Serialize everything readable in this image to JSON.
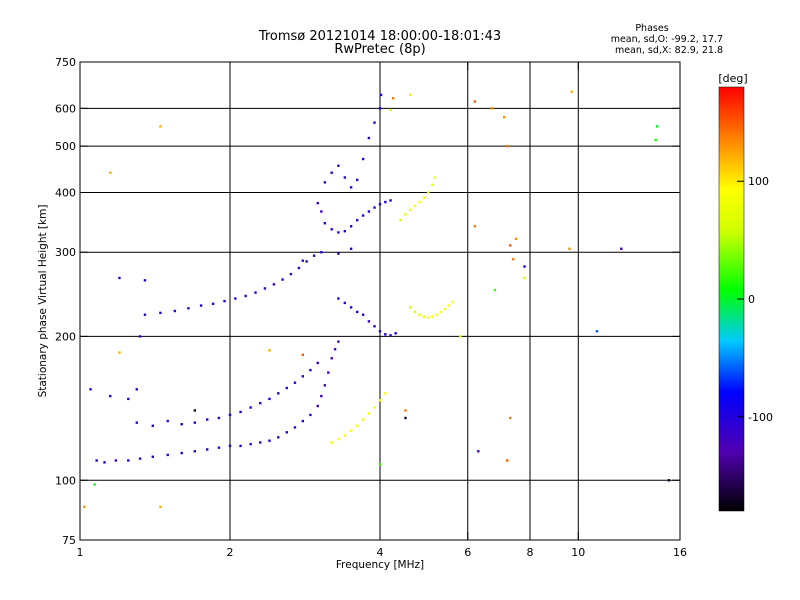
{
  "chart_data": {
    "type": "scatter",
    "title": "Tromsø 20121014 18:00:00-18:01:43",
    "subtitle": "RwPretec (8p)",
    "xlabel": "Frequency [MHz]",
    "ylabel": "Stationary phase Virtual Height [km]",
    "x_scale": "log",
    "y_scale": "log",
    "xlim": [
      1,
      16
    ],
    "ylim": [
      75,
      750
    ],
    "x_ticks": [
      1,
      2,
      4,
      6,
      8,
      10,
      16
    ],
    "y_ticks": [
      75,
      100,
      200,
      300,
      400,
      500,
      600,
      750
    ],
    "x_grid": [
      2,
      4,
      6,
      8,
      10
    ],
    "y_grid": [
      100,
      200,
      300,
      400,
      500,
      600
    ],
    "grid": true,
    "stats": {
      "heading": "Phases",
      "line_o": "mean, sd,O: -99.2, 17.7",
      "line_x": "mean, sd,X:  82.9, 21.8"
    },
    "colorbar": {
      "label": "[deg]",
      "range": [
        -180,
        180
      ],
      "ticks": [
        100,
        0,
        -100
      ]
    },
    "points_description": "Ionogram echoes; each point [frequency MHz, virtual height km, phase deg]",
    "series": [
      {
        "traces": [
          [
            1.08,
            110,
            -105
          ],
          [
            1.12,
            109,
            -108
          ],
          [
            1.18,
            110,
            -112
          ],
          [
            1.25,
            110,
            -104
          ],
          [
            1.32,
            111,
            -110
          ],
          [
            1.4,
            112,
            -106
          ],
          [
            1.5,
            113,
            -112
          ],
          [
            1.6,
            114,
            -108
          ],
          [
            1.7,
            115,
            -110
          ],
          [
            1.8,
            116,
            -105
          ],
          [
            1.9,
            117,
            -112
          ],
          [
            2.0,
            118,
            -108
          ],
          [
            2.1,
            118,
            -106
          ],
          [
            2.2,
            119,
            -102
          ],
          [
            2.3,
            120,
            -110
          ],
          [
            2.4,
            121,
            -98
          ],
          [
            2.5,
            123,
            -104
          ],
          [
            2.6,
            126,
            -100
          ],
          [
            2.7,
            129,
            -106
          ],
          [
            2.8,
            133,
            -102
          ],
          [
            2.9,
            137,
            -108
          ],
          [
            3.0,
            143,
            -112
          ],
          [
            3.05,
            150,
            -114
          ],
          [
            3.1,
            158,
            -116
          ],
          [
            3.15,
            168,
            -118
          ],
          [
            3.2,
            180,
            -120
          ],
          [
            3.25,
            188,
            -122
          ],
          [
            3.3,
            195,
            -124
          ],
          [
            1.3,
            132,
            -110
          ],
          [
            1.4,
            130,
            -106
          ],
          [
            1.5,
            133,
            -112
          ],
          [
            1.6,
            131,
            -104
          ],
          [
            1.7,
            132,
            -108
          ],
          [
            1.8,
            134,
            -100
          ],
          [
            1.9,
            135,
            -106
          ],
          [
            2.0,
            137,
            -102
          ],
          [
            2.1,
            139,
            -108
          ],
          [
            2.2,
            142,
            -104
          ],
          [
            2.3,
            145,
            -110
          ],
          [
            2.4,
            148,
            -96
          ],
          [
            2.5,
            152,
            -102
          ],
          [
            2.6,
            156,
            -108
          ],
          [
            2.7,
            160,
            -104
          ],
          [
            2.8,
            165,
            -110
          ],
          [
            2.9,
            170,
            -106
          ],
          [
            3.0,
            176,
            -112
          ],
          [
            1.35,
            222,
            -108
          ],
          [
            1.45,
            224,
            -112
          ],
          [
            1.55,
            226,
            -106
          ],
          [
            1.65,
            229,
            -110
          ],
          [
            1.75,
            232,
            -104
          ],
          [
            1.85,
            234,
            -108
          ],
          [
            1.95,
            237,
            -112
          ],
          [
            2.05,
            240,
            -106
          ],
          [
            2.15,
            243,
            -110
          ],
          [
            2.25,
            247,
            -104
          ],
          [
            2.35,
            252,
            -108
          ],
          [
            2.45,
            257,
            -112
          ],
          [
            2.55,
            263,
            -106
          ],
          [
            2.65,
            270,
            -110
          ],
          [
            2.75,
            278,
            -104
          ],
          [
            2.85,
            287,
            -108
          ],
          [
            2.95,
            295,
            -112
          ],
          [
            3.05,
            300,
            -106
          ],
          [
            3.0,
            380,
            -112
          ],
          [
            3.05,
            365,
            -116
          ],
          [
            3.1,
            345,
            -108
          ],
          [
            3.2,
            335,
            -112
          ],
          [
            3.3,
            330,
            -106
          ],
          [
            3.4,
            332,
            -110
          ],
          [
            3.5,
            340,
            -104
          ],
          [
            3.6,
            350,
            -108
          ],
          [
            3.7,
            358,
            -112
          ],
          [
            3.8,
            365,
            -106
          ],
          [
            3.9,
            372,
            -110
          ],
          [
            4.0,
            378,
            -102
          ],
          [
            4.1,
            382,
            -98
          ],
          [
            4.2,
            385,
            -92
          ],
          [
            3.1,
            420,
            -114
          ],
          [
            3.2,
            440,
            -110
          ],
          [
            3.3,
            455,
            -106
          ],
          [
            3.4,
            430,
            -112
          ],
          [
            3.5,
            410,
            -108
          ],
          [
            3.6,
            425,
            -104
          ],
          [
            3.7,
            470,
            -110
          ],
          [
            3.8,
            520,
            -106
          ],
          [
            3.9,
            560,
            -102
          ],
          [
            4.0,
            600,
            -98
          ],
          [
            4.02,
            640,
            -96
          ],
          [
            3.3,
            240,
            -108
          ],
          [
            3.4,
            235,
            -112
          ],
          [
            3.5,
            230,
            -106
          ],
          [
            3.6,
            225,
            -110
          ],
          [
            3.7,
            222,
            -104
          ],
          [
            3.8,
            215,
            -108
          ],
          [
            3.9,
            210,
            -112
          ],
          [
            4.0,
            205,
            -106
          ],
          [
            4.1,
            202,
            -100
          ],
          [
            4.2,
            201,
            -96
          ],
          [
            4.3,
            203,
            -92
          ],
          [
            4.6,
            230,
            60
          ],
          [
            4.7,
            225,
            70
          ],
          [
            4.8,
            222,
            80
          ],
          [
            4.9,
            220,
            90
          ],
          [
            5.0,
            219,
            85
          ],
          [
            5.1,
            220,
            95
          ],
          [
            5.2,
            222,
            88
          ],
          [
            5.3,
            225,
            92
          ],
          [
            5.4,
            228,
            84
          ],
          [
            5.5,
            232,
            90
          ],
          [
            5.6,
            236,
            86
          ],
          [
            4.4,
            350,
            60
          ],
          [
            4.5,
            360,
            70
          ],
          [
            4.6,
            368,
            80
          ],
          [
            4.7,
            375,
            90
          ],
          [
            4.8,
            382,
            86
          ],
          [
            4.9,
            390,
            92
          ],
          [
            5.0,
            400,
            88
          ],
          [
            5.1,
            415,
            82
          ],
          [
            5.15,
            430,
            78
          ],
          [
            3.2,
            120,
            80
          ],
          [
            3.3,
            122,
            86
          ],
          [
            3.4,
            124,
            90
          ],
          [
            3.5,
            127,
            92
          ],
          [
            3.6,
            130,
            88
          ],
          [
            3.7,
            134,
            84
          ],
          [
            3.8,
            138,
            90
          ],
          [
            3.9,
            142,
            86
          ],
          [
            4.0,
            147,
            92
          ],
          [
            4.1,
            152,
            88
          ],
          [
            1.05,
            155,
            -106
          ],
          [
            1.15,
            150,
            -98
          ],
          [
            1.25,
            148,
            -112
          ],
          [
            1.07,
            98,
            10
          ],
          [
            1.02,
            88,
            130
          ],
          [
            1.45,
            88,
            120
          ],
          [
            1.45,
            550,
            120
          ],
          [
            1.15,
            440,
            120
          ],
          [
            1.2,
            265,
            -108
          ],
          [
            1.35,
            262,
            -100
          ],
          [
            1.32,
            200,
            -120
          ],
          [
            1.7,
            140,
            -170
          ],
          [
            1.2,
            185,
            120
          ],
          [
            1.3,
            155,
            -110
          ],
          [
            2.4,
            187,
            120
          ],
          [
            2.8,
            183,
            150
          ],
          [
            4.25,
            630,
            140
          ],
          [
            4.2,
            595,
            60
          ],
          [
            4.6,
            640,
            100
          ],
          [
            6.2,
            620,
            150
          ],
          [
            6.7,
            600,
            130
          ],
          [
            7.1,
            575,
            130
          ],
          [
            7.2,
            500,
            140
          ],
          [
            7.3,
            310,
            150
          ],
          [
            7.4,
            290,
            140
          ],
          [
            7.5,
            320,
            130
          ],
          [
            7.8,
            280,
            -100
          ],
          [
            7.8,
            265,
            60
          ],
          [
            9.7,
            650,
            120
          ],
          [
            10.9,
            205,
            -60
          ],
          [
            12.2,
            305,
            -120
          ],
          [
            14.4,
            550,
            0
          ],
          [
            14.3,
            515,
            10
          ],
          [
            15.2,
            100,
            -170
          ],
          [
            6.3,
            115,
            -120
          ],
          [
            7.2,
            110,
            150
          ],
          [
            7.3,
            135,
            140
          ],
          [
            4.5,
            140,
            140
          ],
          [
            4.5,
            135,
            -160
          ],
          [
            4.0,
            108,
            20
          ],
          [
            9.6,
            305,
            130
          ],
          [
            6.2,
            340,
            140
          ],
          [
            5.8,
            200,
            60
          ],
          [
            6.8,
            250,
            20
          ],
          [
            2.8,
            288,
            -110
          ],
          [
            3.3,
            298,
            -104
          ],
          [
            3.5,
            305,
            -108
          ]
        ]
      }
    ]
  }
}
